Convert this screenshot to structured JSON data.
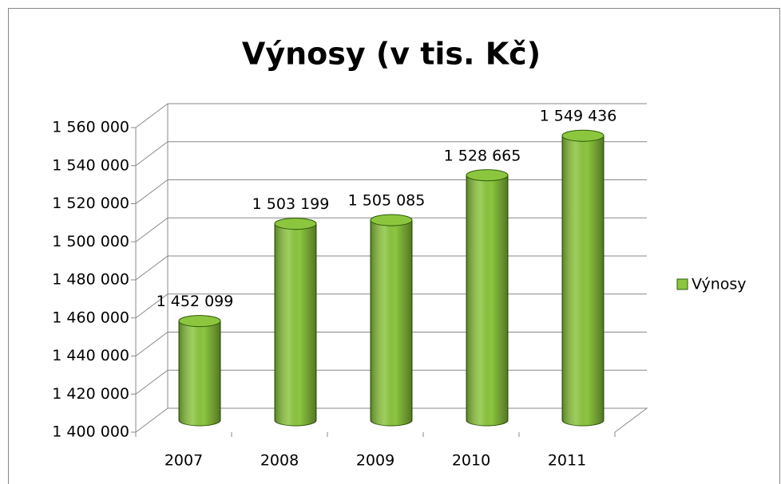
{
  "chart_data": {
    "type": "bar3d",
    "title": "Výnosy (v tis. Kč)",
    "categories": [
      "2007",
      "2008",
      "2009",
      "2010",
      "2011"
    ],
    "series": [
      {
        "name": "Výnosy",
        "color": "#8cc63e",
        "values": [
          1452099,
          1503199,
          1505085,
          1528665,
          1549436
        ],
        "value_labels": [
          "1 452 099",
          "1 503 199",
          "1 505 085",
          "1 528 665",
          "1 549 436"
        ]
      }
    ],
    "ylim": [
      1400000,
      1560000
    ],
    "yticks": [
      {
        "value": 1400000,
        "label": "1 400 000"
      },
      {
        "value": 1420000,
        "label": "1 420 000"
      },
      {
        "value": 1440000,
        "label": "1 440 000"
      },
      {
        "value": 1460000,
        "label": "1 460 000"
      },
      {
        "value": 1480000,
        "label": "1 480 000"
      },
      {
        "value": 1500000,
        "label": "1 500 000"
      },
      {
        "value": 1520000,
        "label": "1 520 000"
      },
      {
        "value": 1540000,
        "label": "1 540 000"
      },
      {
        "value": 1560000,
        "label": "1 560 000"
      }
    ],
    "grid": true,
    "legend": "right"
  }
}
